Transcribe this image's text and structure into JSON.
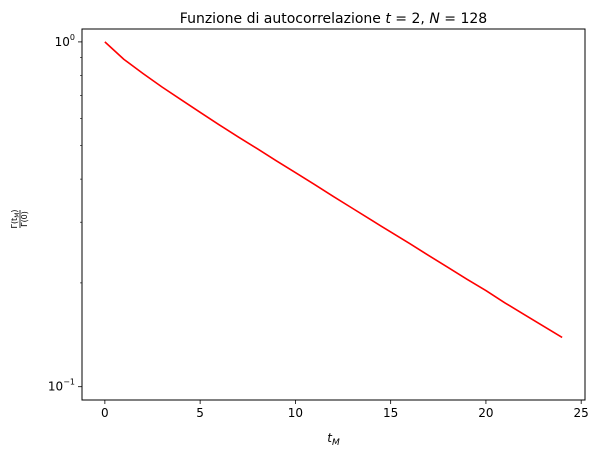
{
  "chart_data": {
    "type": "line",
    "title": {
      "prefix": "Funzione di autocorrelazione",
      "t_var": "t",
      "t_value": "2",
      "n_var": "N",
      "n_value": "128"
    },
    "xlabel": {
      "base": "t",
      "sub": "M"
    },
    "ylabel": {
      "num_base": "Γ(t",
      "num_sub": "M",
      "num_close": ")",
      "den": "Γ(0)"
    },
    "x_scale": "linear",
    "y_scale": "log",
    "xlim": [
      -1.2,
      25.2
    ],
    "ylim": [
      0.0915,
      1.09
    ],
    "x_ticks": [
      0,
      5,
      10,
      15,
      20,
      25
    ],
    "x_tick_labels": [
      "0",
      "5",
      "10",
      "15",
      "20",
      "25"
    ],
    "y_major_ticks": [
      {
        "value": 1.0,
        "base": "10",
        "exp": "0"
      },
      {
        "value": 0.1,
        "base": "10",
        "exp": "−1"
      }
    ],
    "y_minor_ticks": [
      0.2,
      0.3,
      0.4,
      0.5,
      0.6,
      0.7,
      0.8,
      0.9
    ],
    "grid": false,
    "legend": "none",
    "series": [
      {
        "color": "#ff0000",
        "x": [
          0,
          1,
          2,
          3,
          4,
          5,
          6,
          7,
          8,
          9,
          10,
          11,
          12,
          13,
          14,
          15,
          16,
          17,
          18,
          19,
          20,
          21,
          22,
          23,
          24
        ],
        "y": [
          1.0,
          0.89,
          0.81,
          0.74,
          0.68,
          0.625,
          0.575,
          0.53,
          0.49,
          0.452,
          0.418,
          0.386,
          0.356,
          0.329,
          0.304,
          0.281,
          0.26,
          0.24,
          0.222,
          0.205,
          0.19,
          0.175,
          0.162,
          0.15,
          0.139
        ]
      }
    ]
  }
}
